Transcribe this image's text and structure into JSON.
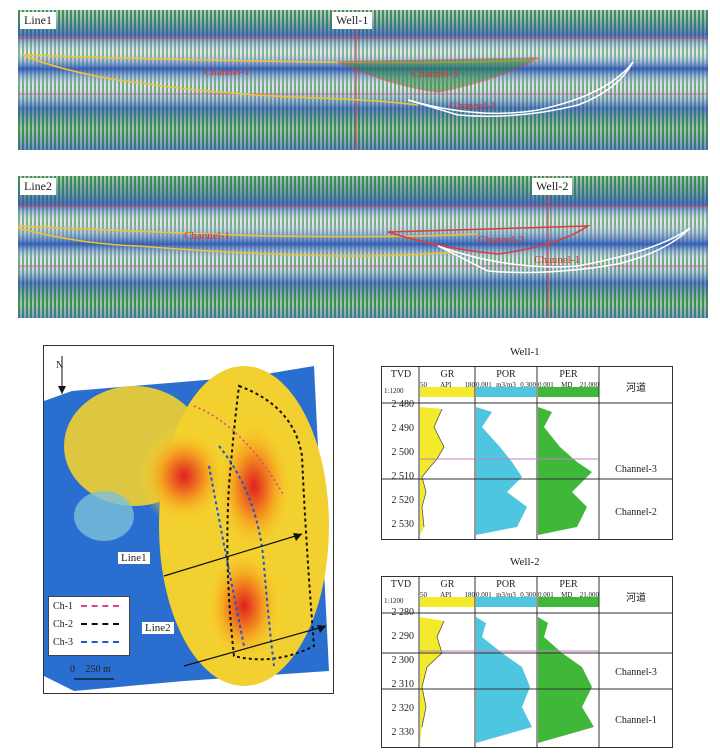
{
  "sections": [
    {
      "line_label": "Line1",
      "well_label": "Well-1",
      "channels": [
        "Channel-1",
        "Channel-3",
        "Channel-1"
      ]
    },
    {
      "line_label": "Line2",
      "well_label": "Well-2",
      "channels": [
        "Channel-1",
        "Channel-2",
        "Channel-1"
      ]
    }
  ],
  "map": {
    "north": "N",
    "legend": [
      {
        "label": "Ch-1",
        "color": "#e6408a"
      },
      {
        "label": "Ch-2",
        "color": "#111111"
      },
      {
        "label": "Ch-3",
        "color": "#2255cc"
      }
    ],
    "scale_zero": "0",
    "scale_len": "250 m",
    "line_labels": [
      "Line1",
      "Line2"
    ]
  },
  "wells": [
    {
      "title": "Well-1",
      "header": {
        "tvd": "TVD",
        "scale": "1:1200",
        "gr": "GR",
        "gr_min": "50",
        "gr_unit": "API",
        "gr_max": "180",
        "por": "POR",
        "por_min": "0.001",
        "por_unit": "m3/m3",
        "por_max": "0.300",
        "per": "PER",
        "per_min": "0.001",
        "per_unit": "MD",
        "per_max": "21.000",
        "zone_head": "河道"
      },
      "depths": [
        "2 480",
        "2 490",
        "2 500",
        "2 510",
        "2 520",
        "2 530"
      ],
      "zones": [
        "Channel-3",
        "Channel-2"
      ]
    },
    {
      "title": "Well-2",
      "header": {
        "tvd": "TVD",
        "scale": "1:1200",
        "gr": "GR",
        "gr_min": "50",
        "gr_unit": "API",
        "gr_max": "180",
        "por": "POR",
        "por_min": "0.001",
        "por_unit": "m3/m3",
        "por_max": "0.300",
        "per": "PER",
        "per_min": "0.001",
        "per_unit": "MD",
        "per_max": "21.000",
        "zone_head": "河道"
      },
      "depths": [
        "2 280",
        "2 290",
        "2 300",
        "2 310",
        "2 320",
        "2 330"
      ],
      "zones": [
        "Channel-3",
        "Channel-1"
      ]
    }
  ],
  "colors": {
    "gr_fill": "#f2ea2a",
    "por_fill": "#4fc6e0",
    "per_fill": "#3fb83a",
    "seis_green": "#2f8a3c",
    "seis_blue": "#2a56b8"
  }
}
